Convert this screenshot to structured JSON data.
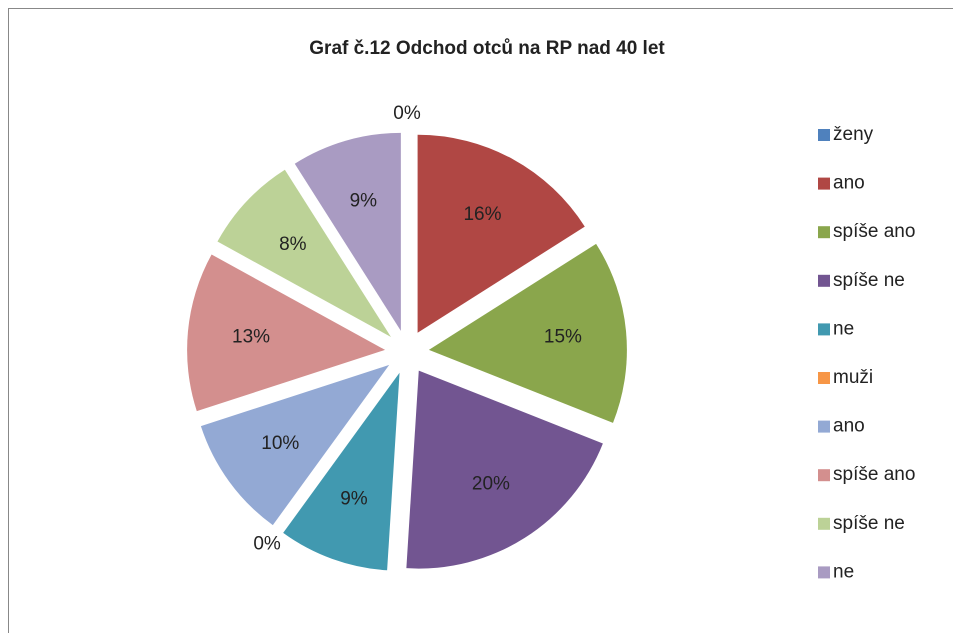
{
  "chart_data": {
    "type": "pie",
    "title": "Graf č.12 Odchod otců na RP nad 40 let",
    "categories": [
      "ženy",
      "ano",
      "spíše ano",
      "spíše ne",
      "ne",
      "muži",
      "ano",
      "spíše ano",
      "spíše ne",
      "ne"
    ],
    "values": [
      0,
      16,
      15,
      20,
      9,
      0,
      10,
      13,
      8,
      9
    ],
    "value_labels": [
      "0%",
      "16%",
      "15%",
      "20%",
      "9%",
      "0%",
      "10%",
      "13%",
      "8%",
      "9%"
    ],
    "colors": [
      "#4f81bd",
      "#b04744",
      "#8aa64c",
      "#725591",
      "#4199b0",
      "#f79646",
      "#93a9d4",
      "#d38f8e",
      "#bcd297",
      "#a99bc2"
    ],
    "legend": "right"
  }
}
